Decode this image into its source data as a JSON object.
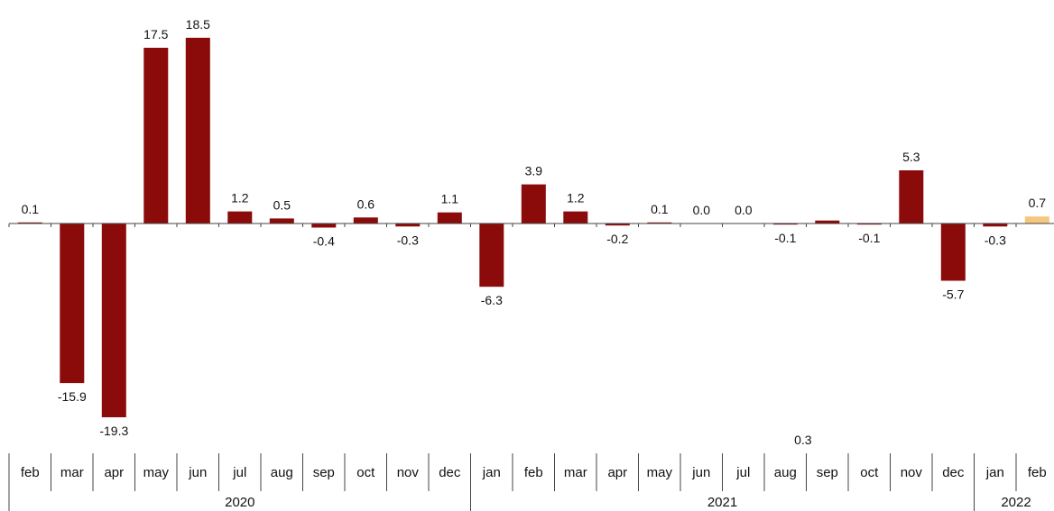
{
  "chart_data": {
    "type": "bar",
    "categories": [
      "feb",
      "mar",
      "apr",
      "may",
      "jun",
      "jul",
      "aug",
      "sep",
      "oct",
      "nov",
      "dec",
      "jan",
      "feb",
      "mar",
      "apr",
      "may",
      "jun",
      "jul",
      "aug",
      "sep",
      "oct",
      "nov",
      "dec",
      "jan",
      "feb"
    ],
    "years": [
      {
        "label": "2020",
        "count": 11
      },
      {
        "label": "2021",
        "count": 12
      },
      {
        "label": "2022",
        "count": 2
      }
    ],
    "values": [
      0.1,
      -15.9,
      -19.3,
      17.5,
      18.5,
      1.2,
      0.5,
      -0.4,
      0.6,
      -0.3,
      1.1,
      -6.3,
      3.9,
      1.2,
      -0.2,
      0.1,
      0.0,
      0.0,
      -0.1,
      0.3,
      -0.1,
      5.3,
      -5.7,
      -0.3,
      0.7
    ],
    "labels": [
      "0.1",
      "-15.9",
      "-19.3",
      "17.5",
      "18.5",
      "1.2",
      "0.5",
      "-0.4",
      "0.6",
      "-0.3",
      "1.1",
      "-6.3",
      "3.9",
      "1.2",
      "-0.2",
      "0.1",
      "0.0",
      "0.0",
      "-0.1",
      "0.3",
      "-0.1",
      "5.3",
      "-5.7",
      "-0.3",
      "0.7"
    ],
    "colors": {
      "default": "#8b0a0a",
      "highlight": "#f5c77e"
    },
    "highlight_index": 24,
    "title": "",
    "xlabel": "",
    "ylabel": "",
    "ylim": [
      -19.3,
      18.5
    ],
    "grid": false
  }
}
